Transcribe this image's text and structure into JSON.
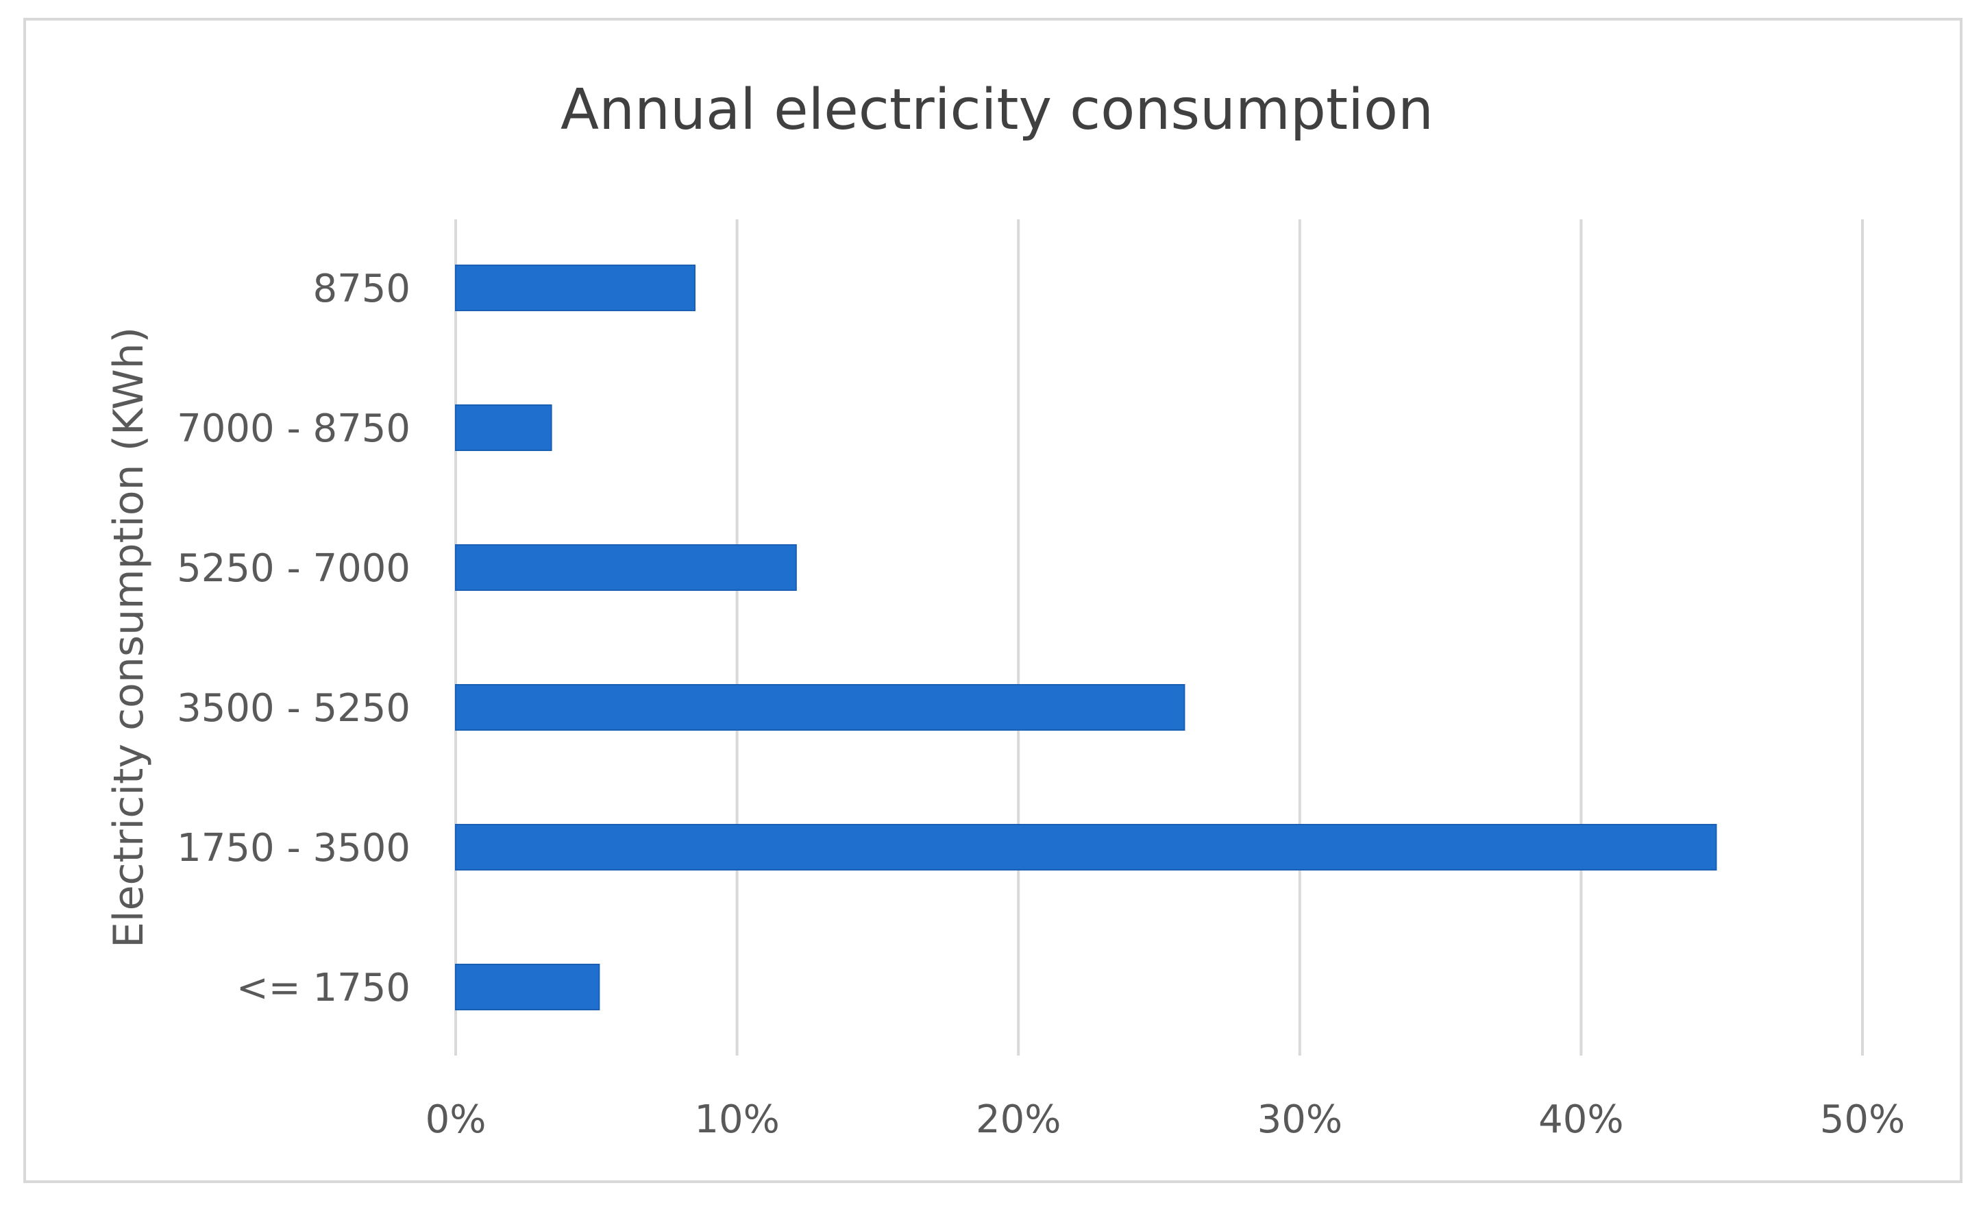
{
  "chart_data": {
    "type": "bar",
    "orientation": "horizontal",
    "title": "Annual electricity consumption",
    "xlabel": "",
    "ylabel": "Electricity consumption (KWh)",
    "categories": [
      "8750",
      "7000 - 8750",
      "5250 - 7000",
      "3500 - 5250",
      "1750 - 3500",
      "<= 1750"
    ],
    "values": [
      8.5,
      3.4,
      12.1,
      25.9,
      44.8,
      5.1
    ],
    "xlim": [
      0,
      50
    ],
    "ticks": [
      0,
      10,
      20,
      30,
      40,
      50
    ],
    "tick_labels": [
      "0%",
      "10%",
      "20%",
      "30%",
      "40%",
      "50%"
    ],
    "grid": true,
    "legend": "none",
    "bar_color": "#1f6fcf"
  }
}
